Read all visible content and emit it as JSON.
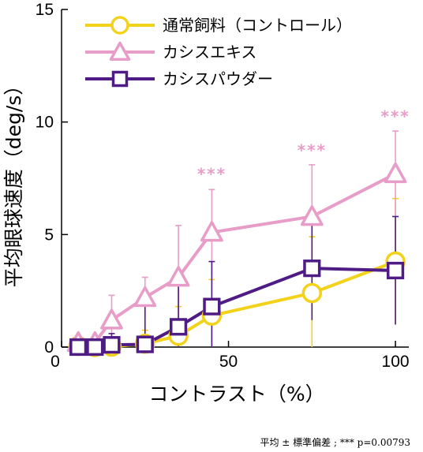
{
  "chart_data": {
    "type": "line",
    "title": "",
    "xlabel": "コントラスト（%）",
    "ylabel": "平均眼球速度（deg/s）",
    "xlim": [
      0,
      104
    ],
    "ylim": [
      0,
      15
    ],
    "x_ticks": [
      0,
      50,
      100
    ],
    "y_ticks": [
      0,
      5,
      10,
      15
    ],
    "x_tick_labels": [
      "0",
      "50",
      "100"
    ],
    "y_tick_labels": [
      "0",
      "5",
      "10",
      "15"
    ],
    "grid": false,
    "legend_position": "top",
    "series": [
      {
        "name": "通常飼料（コントロール）",
        "color": "#f2d21b",
        "marker": "circle",
        "x": [
          5,
          10,
          15,
          25,
          35,
          45,
          75,
          100
        ],
        "y": [
          0.05,
          0.0,
          0.02,
          0.15,
          0.5,
          1.4,
          2.4,
          3.8
        ],
        "err": [
          0.1,
          0.1,
          0.2,
          0.6,
          1.3,
          1.6,
          2.5,
          2.8
        ]
      },
      {
        "name": "カシスエキス",
        "color": "#e89cc8",
        "marker": "triangle",
        "x": [
          5,
          10,
          15,
          25,
          35,
          45,
          75,
          100
        ],
        "y": [
          0.2,
          0.2,
          1.2,
          2.2,
          3.1,
          5.1,
          5.8,
          7.7
        ],
        "err": [
          0.2,
          0.2,
          1.1,
          0.9,
          2.3,
          1.9,
          2.3,
          1.9
        ]
      },
      {
        "name": "カシスパウダー",
        "color": "#4f1c86",
        "marker": "square",
        "x": [
          5,
          10,
          15,
          25,
          35,
          45,
          75,
          100
        ],
        "y": [
          0.0,
          0.0,
          0.1,
          0.12,
          0.9,
          1.8,
          3.5,
          3.4
        ],
        "err": [
          0.1,
          0.1,
          0.5,
          2.1,
          1.9,
          2.0,
          2.3,
          2.4
        ]
      }
    ],
    "annotations": [
      {
        "text": "***",
        "x": 45,
        "y": 7.45
      },
      {
        "text": "***",
        "x": 75,
        "y": 8.5
      },
      {
        "text": "***",
        "x": 100,
        "y": 10.0
      }
    ],
    "footnote": "平均 ± 標準偏差 ; *** p=0.00793"
  }
}
